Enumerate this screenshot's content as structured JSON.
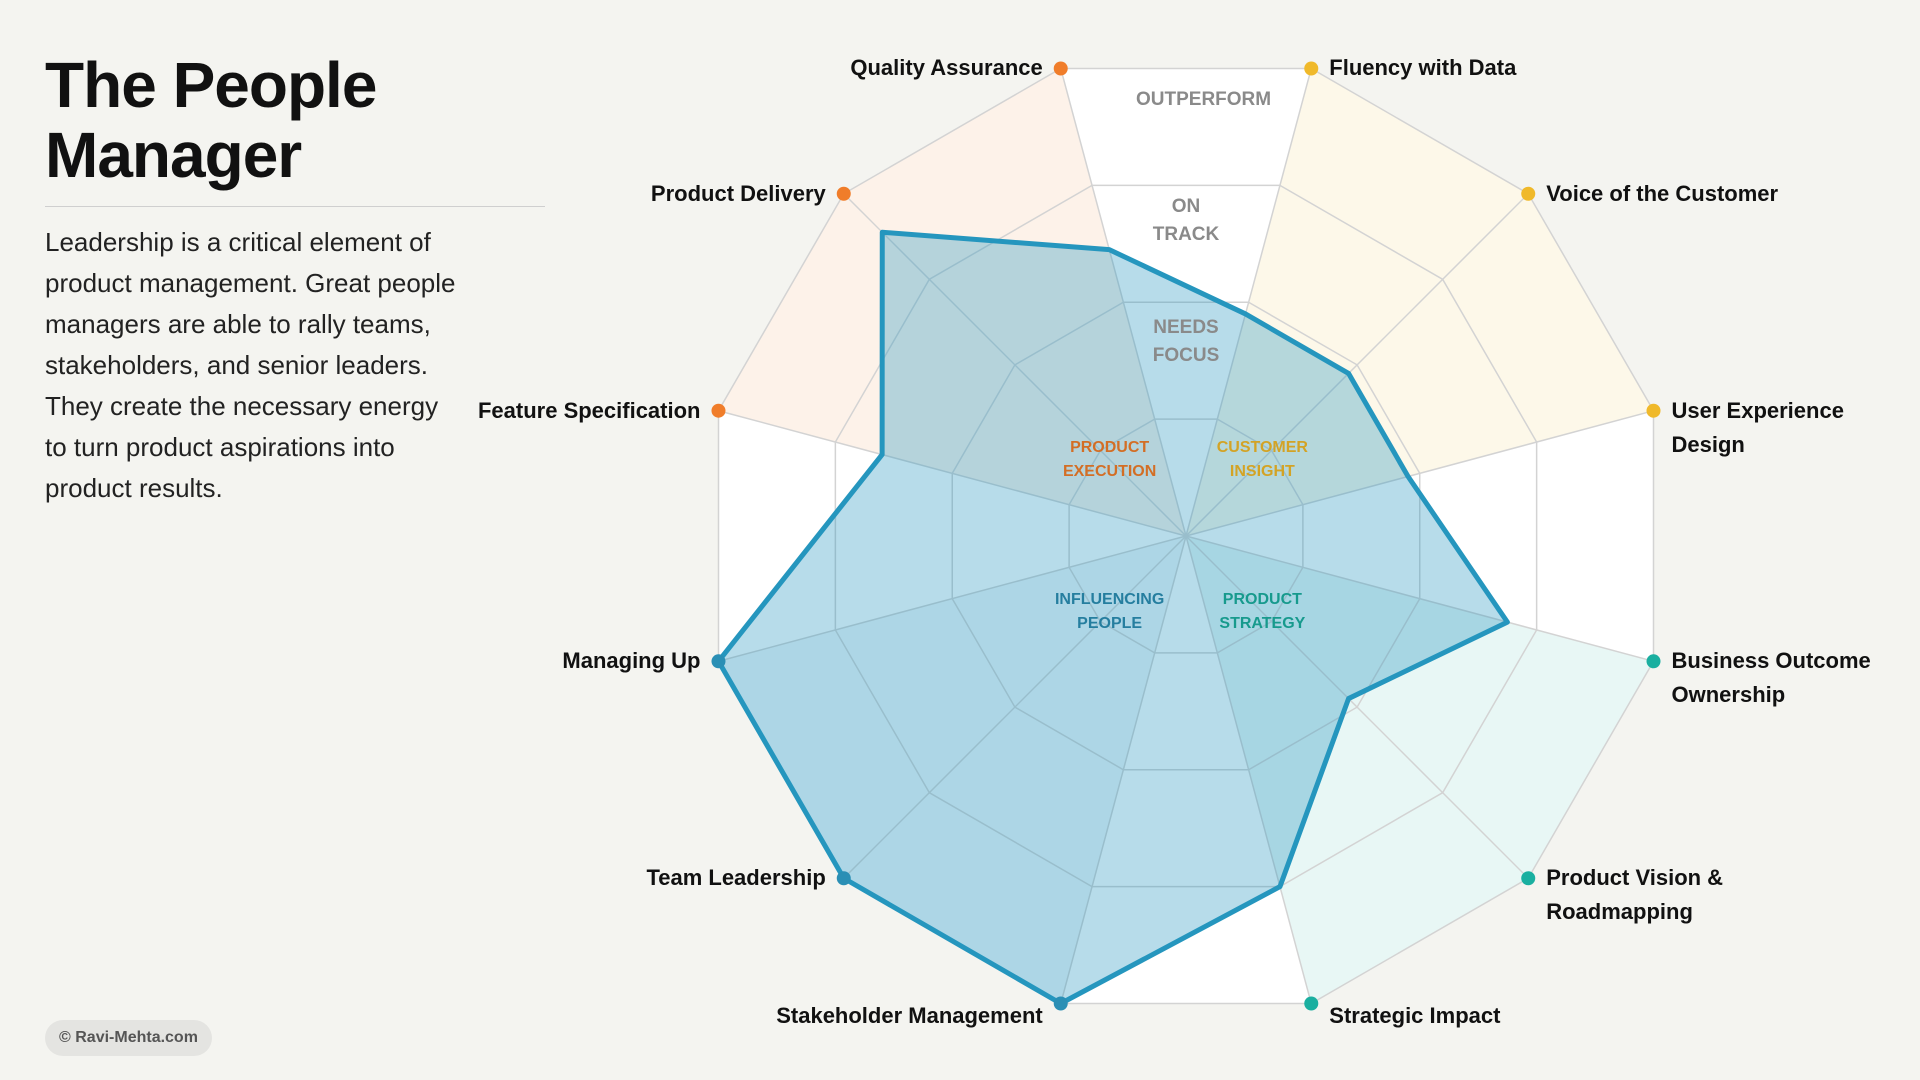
{
  "chart_data": {
    "type": "radar",
    "title": "The People Manager",
    "description": "Leadership is a critical element of product management. Great people managers are able to rally teams, stakeholders, and senior leaders. They create the necessary energy to turn product aspirations into product results.",
    "credit": "© Ravi-Mehta.com",
    "categories": [
      "Fluency with Data",
      "Voice of the Customer",
      "User Experience Design",
      "Business Outcome Ownership",
      "Product Vision & Roadmapping",
      "Strategic Impact",
      "Stakeholder Management",
      "Team Leadership",
      "Managing Up",
      "Feature Specification",
      "Product Delivery",
      "Quality Assurance"
    ],
    "values": [
      1.9,
      1.9,
      1.9,
      2.75,
      1.9,
      3,
      4,
      4,
      4,
      2.6,
      3.55,
      2.45
    ],
    "color": "#2596be",
    "groups": [
      {
        "name": "CUSTOMER INSIGHT",
        "color": "#f0b92a"
      },
      {
        "name": "PRODUCT STRATEGY",
        "color": "#1aafa0"
      },
      {
        "name": "INFLUENCING PEOPLE",
        "color": "#2a8fb5"
      },
      {
        "name": "PRODUCT EXECUTION",
        "color": "#f07d2a"
      }
    ],
    "zones": [
      "NEEDS FOCUS",
      "ON TRACK",
      "OUTPERFORM"
    ],
    "rlim": [
      0,
      4
    ],
    "rticks": [
      1,
      2,
      3,
      4
    ]
  }
}
